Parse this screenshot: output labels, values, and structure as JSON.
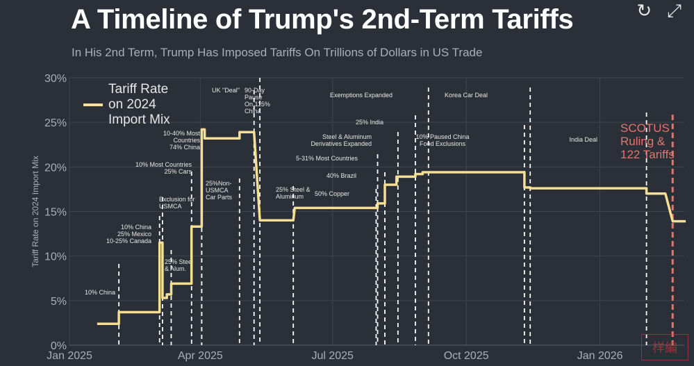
{
  "title": "A Timeline of Trump's 2nd-Term Tariffs",
  "subtitle": "In His 2nd Term, Trump Has Imposed Tariffs On Trillions of Dollars in US Trade",
  "icons": [
    "refresh-icon",
    "expand-icon"
  ],
  "watermark_text": "样編",
  "colors": {
    "background": "#2b3038",
    "line": "#f6df92",
    "event_line": "#ffffff",
    "scotus": "#e8736a",
    "grid": "#3f454e",
    "axis_text": "#a9afb8"
  },
  "chart_data": {
    "type": "line",
    "title": "A Timeline of Trump's 2nd-Term Tariffs",
    "subtitle": "In His 2nd Term, Trump Has Imposed Tariffs On Trillions of Dollars in US Trade",
    "xlabel": "",
    "ylabel": "Tariff Rate on 2024 Import Mix",
    "xlim": [
      "2025-01-01",
      "2026-02-28"
    ],
    "ylim": [
      0,
      30
    ],
    "y_ticks": [
      0,
      5,
      10,
      15,
      20,
      25,
      30
    ],
    "y_tick_labels": [
      "0%",
      "5%",
      "10%",
      "15%",
      "20%",
      "25%",
      "30%"
    ],
    "x_ticks": [
      "2025-01-01",
      "2025-04-01",
      "2025-07-01",
      "2025-10-01",
      "2026-01-01"
    ],
    "x_tick_labels": [
      "Jan 2025",
      "Apr 2025",
      "Jul 2025",
      "Oct 2025",
      "Jan 2026"
    ],
    "grid": true,
    "legend": {
      "position": "top-left",
      "entries": [
        "Tariff Rate\non 2024\nImport Mix"
      ]
    },
    "series": [
      {
        "name": "Tariff Rate\non 2024\nImport Mix",
        "color": "#f6df92",
        "points": [
          [
            "2025-01-20",
            2.4
          ],
          [
            "2025-02-04",
            2.4
          ],
          [
            "2025-02-04",
            3.7
          ],
          [
            "2025-03-04",
            3.7
          ],
          [
            "2025-03-04",
            11.5
          ],
          [
            "2025-03-06",
            11.5
          ],
          [
            "2025-03-06",
            5.3
          ],
          [
            "2025-03-09",
            5.3
          ],
          [
            "2025-03-09",
            5.7
          ],
          [
            "2025-03-12",
            5.7
          ],
          [
            "2025-03-12",
            6.9
          ],
          [
            "2025-03-26",
            6.9
          ],
          [
            "2025-03-26",
            13.3
          ],
          [
            "2025-04-02",
            13.3
          ],
          [
            "2025-04-02",
            24.2
          ],
          [
            "2025-04-04",
            24.2
          ],
          [
            "2025-04-04",
            23.2
          ],
          [
            "2025-04-28",
            23.2
          ],
          [
            "2025-04-28",
            23.9
          ],
          [
            "2025-05-08",
            23.9
          ],
          [
            "2025-05-12",
            14.0
          ],
          [
            "2025-06-04",
            14.0
          ],
          [
            "2025-06-05",
            15.4
          ],
          [
            "2025-08-01",
            15.4
          ],
          [
            "2025-08-01",
            15.9
          ],
          [
            "2025-08-06",
            15.9
          ],
          [
            "2025-08-06",
            18.0
          ],
          [
            "2025-08-14",
            18.0
          ],
          [
            "2025-08-14",
            18.9
          ],
          [
            "2025-08-27",
            18.9
          ],
          [
            "2025-08-27",
            19.2
          ],
          [
            "2025-09-01",
            19.2
          ],
          [
            "2025-09-01",
            19.4
          ],
          [
            "2025-11-10",
            19.4
          ],
          [
            "2025-11-10",
            17.7
          ],
          [
            "2025-11-14",
            17.7
          ],
          [
            "2025-11-14",
            17.6
          ],
          [
            "2026-02-02",
            17.6
          ],
          [
            "2026-02-02",
            17.0
          ],
          [
            "2026-02-15",
            17.0
          ],
          [
            "2026-02-20",
            13.9
          ],
          [
            "2026-03-01",
            13.9
          ]
        ]
      }
    ],
    "events": [
      {
        "date": "2025-02-04",
        "label": "10% China"
      },
      {
        "date": "2025-03-04",
        "label": "10% China\n25% Mexico\n10-25% Canada"
      },
      {
        "date": "2025-03-06",
        "label": "Exclusion for\nUSMCA"
      },
      {
        "date": "2025-03-12",
        "label": "25% Steel\n& Alum."
      },
      {
        "date": "2025-03-26",
        "label": "10% Most Countries\n25% Cars"
      },
      {
        "date": "2025-04-02",
        "label": "10-40% Most\nCountries\n74% China"
      },
      {
        "date": "2025-04-28",
        "label": "25%Non-\nUSMCA\nCar Parts"
      },
      {
        "date": "2025-05-08",
        "label": "UK \"Deal\""
      },
      {
        "date": "2025-05-12",
        "label": "90-Day\nPause\nOn 115%\nChina"
      },
      {
        "date": "2025-06-04",
        "label": "25% Steel &\nAluminum"
      },
      {
        "date": "2025-07-31",
        "label": "50% Copper"
      },
      {
        "date": "2025-08-01",
        "label": "5-31% Most Countries"
      },
      {
        "date": "2025-08-06",
        "label": "40% Brazil"
      },
      {
        "date": "2025-08-15",
        "label": "Steel & Aluminum\nDerivatives Expanded"
      },
      {
        "date": "2025-08-27",
        "label": "25% India"
      },
      {
        "date": "2025-09-05",
        "label": "Exemptions Expanded"
      },
      {
        "date": "2025-11-10",
        "label": "10% Paused China\nFood Exclusions"
      },
      {
        "date": "2025-11-14",
        "label": "Korea Car Deal"
      },
      {
        "date": "2026-02-02",
        "label": "India Deal"
      }
    ],
    "annotations": [
      {
        "date": "2026-02-20",
        "label": "SCOTUS\nRuling &\n122 Tariffs",
        "color": "#e8736a"
      }
    ]
  }
}
